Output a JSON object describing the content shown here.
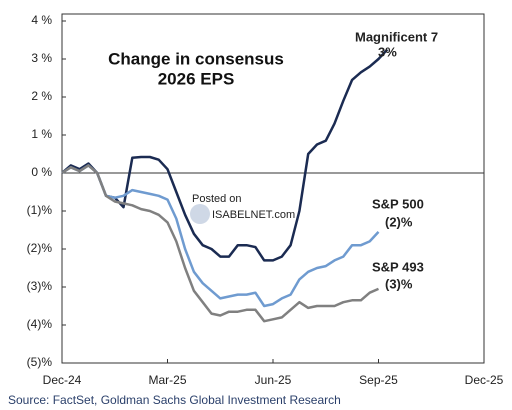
{
  "chart_data": {
    "type": "line",
    "title": [
      "Change in consensus",
      "2026 EPS"
    ],
    "source": "Source: FactSet, Goldman Sachs Global Investment Research",
    "watermark": [
      "Posted on",
      "ISABELNET.com"
    ],
    "xlim": [
      0,
      12
    ],
    "xticks": [
      {
        "value": 0,
        "label": "Dec-24"
      },
      {
        "value": 3,
        "label": "Mar-25"
      },
      {
        "value": 6,
        "label": "Jun-25"
      },
      {
        "value": 9,
        "label": "Sep-25"
      },
      {
        "value": 12,
        "label": "Dec-25"
      }
    ],
    "ylim": [
      -5,
      4
    ],
    "yticks": [
      {
        "value": 4,
        "label": "4 %"
      },
      {
        "value": 3,
        "label": "3 %"
      },
      {
        "value": 2,
        "label": "2 %"
      },
      {
        "value": 1,
        "label": "1 %"
      },
      {
        "value": 0,
        "label": "0 %"
      },
      {
        "value": -1,
        "label": "(1)%"
      },
      {
        "value": -2,
        "label": "(2)%"
      },
      {
        "value": -3,
        "label": "(3)%"
      },
      {
        "value": -4,
        "label": "(4)%"
      },
      {
        "value": -5,
        "label": "(5)%"
      }
    ],
    "grid": false,
    "series": [
      {
        "name": "Magnificent 7",
        "annotation": "3%",
        "color": "#1b2b52",
        "x": [
          0,
          0.25,
          0.5,
          0.75,
          1,
          1.25,
          1.5,
          1.75,
          2,
          2.25,
          2.5,
          2.75,
          3,
          3.25,
          3.5,
          3.75,
          4,
          4.25,
          4.5,
          4.75,
          5,
          5.25,
          5.5,
          5.75,
          6,
          6.25,
          6.5,
          6.75,
          7,
          7.25,
          7.5,
          7.75,
          8,
          8.25,
          8.5,
          8.75,
          9,
          9.25
        ],
        "values": [
          0,
          0.2,
          0.1,
          0.25,
          0,
          -0.6,
          -0.65,
          -0.9,
          0.4,
          0.42,
          0.42,
          0.35,
          0.1,
          -0.5,
          -1.1,
          -1.6,
          -1.9,
          -2.0,
          -2.2,
          -2.2,
          -1.9,
          -1.9,
          -1.95,
          -2.3,
          -2.3,
          -2.2,
          -1.9,
          -1.0,
          0.5,
          0.75,
          0.85,
          1.3,
          1.9,
          2.45,
          2.65,
          2.8,
          3.0,
          3.25
        ]
      },
      {
        "name": "S&P 500",
        "annotation": "(2)%",
        "color": "#6f9bd0",
        "x": [
          0,
          0.25,
          0.5,
          0.75,
          1,
          1.25,
          1.5,
          1.75,
          2,
          2.25,
          2.5,
          2.75,
          3,
          3.25,
          3.5,
          3.75,
          4,
          4.25,
          4.5,
          4.75,
          5,
          5.25,
          5.5,
          5.75,
          6,
          6.25,
          6.5,
          6.75,
          7,
          7.25,
          7.5,
          7.75,
          8,
          8.25,
          8.5,
          8.75,
          9
        ],
        "values": [
          0,
          0.15,
          0.05,
          0.2,
          0,
          -0.6,
          -0.65,
          -0.6,
          -0.45,
          -0.5,
          -0.55,
          -0.6,
          -0.7,
          -1.2,
          -2.0,
          -2.6,
          -2.9,
          -3.1,
          -3.3,
          -3.25,
          -3.2,
          -3.2,
          -3.15,
          -3.5,
          -3.45,
          -3.3,
          -3.2,
          -2.8,
          -2.6,
          -2.5,
          -2.45,
          -2.3,
          -2.2,
          -1.9,
          -1.9,
          -1.8,
          -1.55
        ]
      },
      {
        "name": "S&P 493",
        "annotation": "(3)%",
        "color": "#808080",
        "x": [
          0,
          0.25,
          0.5,
          0.75,
          1,
          1.25,
          1.5,
          1.75,
          2,
          2.25,
          2.5,
          2.75,
          3,
          3.25,
          3.5,
          3.75,
          4,
          4.25,
          4.5,
          4.75,
          5,
          5.25,
          5.5,
          5.75,
          6,
          6.25,
          6.5,
          6.75,
          7,
          7.25,
          7.5,
          7.75,
          8,
          8.25,
          8.5,
          8.75,
          9
        ],
        "values": [
          0,
          0.15,
          0.05,
          0.2,
          0,
          -0.6,
          -0.75,
          -0.8,
          -0.85,
          -0.95,
          -1.0,
          -1.1,
          -1.3,
          -1.8,
          -2.5,
          -3.1,
          -3.4,
          -3.7,
          -3.75,
          -3.65,
          -3.65,
          -3.6,
          -3.6,
          -3.9,
          -3.85,
          -3.8,
          -3.6,
          -3.4,
          -3.55,
          -3.5,
          -3.5,
          -3.5,
          -3.4,
          -3.35,
          -3.35,
          -3.15,
          -3.05
        ]
      }
    ]
  }
}
